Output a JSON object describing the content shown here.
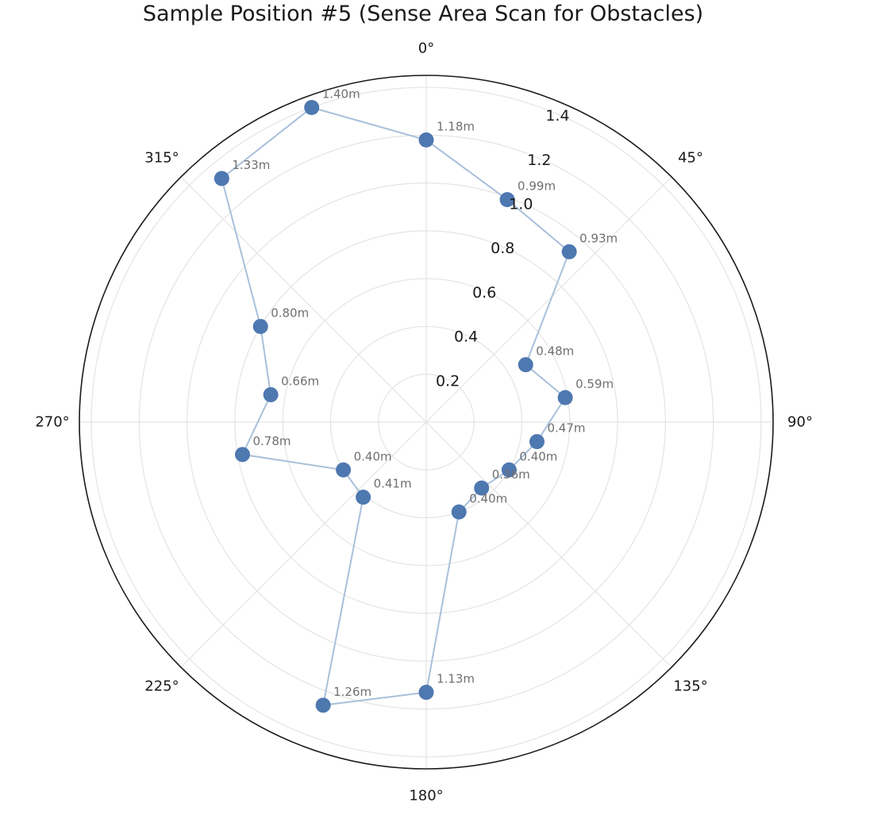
{
  "chart_data": {
    "type": "scatter",
    "subtype": "polar",
    "title": "Sample Position #5 (Sense Area Scan for Obstacles)",
    "theta_direction": "clockwise",
    "theta_zero": "top",
    "angle_ticks": [
      "0°",
      "45°",
      "90°",
      "135°",
      "180°",
      "225°",
      "270°",
      "315°"
    ],
    "angle_tick_values": [
      0,
      45,
      90,
      135,
      180,
      225,
      270,
      315
    ],
    "radial_ticks": [
      "0.2",
      "0.4",
      "0.6",
      "0.8",
      "1.0",
      "1.2",
      "1.4"
    ],
    "radial_tick_values": [
      0.2,
      0.4,
      0.6,
      0.8,
      1.0,
      1.2,
      1.4
    ],
    "rlim": [
      0,
      1.45
    ],
    "grid": true,
    "series": [
      {
        "theta_deg": [
          0,
          20,
          40,
          60,
          80,
          100,
          120,
          140,
          160,
          180,
          200,
          220,
          240,
          260,
          280,
          300,
          320,
          340
        ],
        "r": [
          1.18,
          0.99,
          0.93,
          0.48,
          0.59,
          0.47,
          0.4,
          0.36,
          0.4,
          1.13,
          1.26,
          0.41,
          0.4,
          0.78,
          0.66,
          0.8,
          1.33,
          1.4
        ],
        "labels": [
          "1.18m",
          "0.99m",
          "0.93m",
          "0.48m",
          "0.59m",
          "0.47m",
          "0.40m",
          "0.36m",
          "0.40m",
          "1.13m",
          "1.26m",
          "0.41m",
          "0.40m",
          "0.78m",
          "0.66m",
          "0.80m",
          "1.33m",
          "1.40m"
        ]
      }
    ],
    "colors": {
      "marker": "#4e78b0",
      "line": "#a9c0db",
      "grid": "#e4e4e4",
      "frame": "#1a1a1a",
      "point_label": "#707070"
    }
  }
}
